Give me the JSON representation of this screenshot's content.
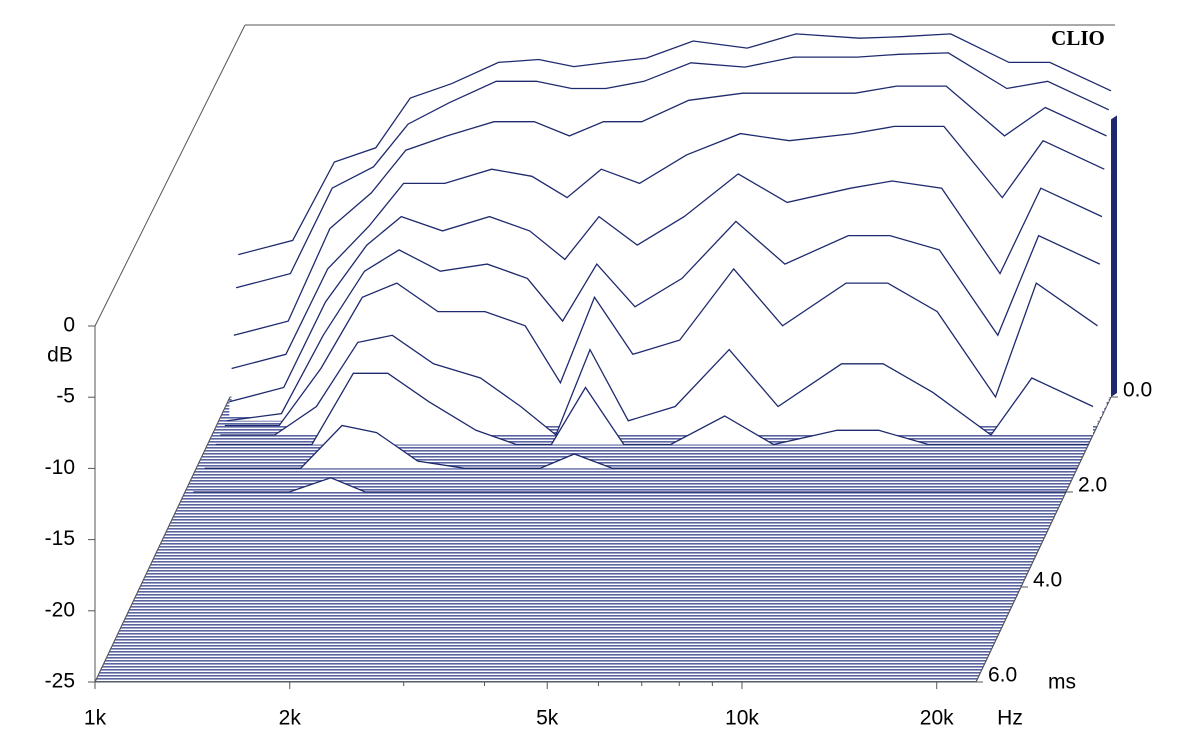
{
  "chart_data": {
    "type": "waterfall",
    "title": "CLIO",
    "y_label": "dB",
    "x_unit": "Hz",
    "time_unit": "ms",
    "xlim": [
      1000,
      23000
    ],
    "xticks": [
      {
        "value": 1000,
        "label": "1k"
      },
      {
        "value": 2000,
        "label": "2k"
      },
      {
        "value": 5000,
        "label": "5k"
      },
      {
        "value": 10000,
        "label": "10k"
      },
      {
        "value": 20000,
        "label": "20k"
      }
    ],
    "xminor_ticks": [
      3000,
      4000,
      6000,
      7000,
      8000,
      9000
    ],
    "ylim": [
      -25,
      0
    ],
    "yticks": [
      0,
      -5,
      -10,
      -15,
      -20,
      -25
    ],
    "tlim": [
      0,
      6
    ],
    "tticks": [
      {
        "value": 0,
        "label": "0.0"
      },
      {
        "value": 2,
        "label": "2.0"
      },
      {
        "value": 4,
        "label": "4.0"
      },
      {
        "value": 6,
        "label": "6.0"
      }
    ],
    "log_x": true,
    "color": "#1f2a6e",
    "floor_color": "#5a64a0",
    "frequencies": [
      1030,
      1250,
      1450,
      1680,
      1900,
      2200,
      2600,
      3000,
      3400,
      3840,
      4400,
      5200,
      6300,
      7500,
      9400,
      10900,
      13000,
      16000,
      18500,
      23000
    ],
    "slices": [
      {
        "time": 0,
        "values": [
          -15,
          -14,
          -8.5,
          -7.5,
          -4,
          -3,
          -1.5,
          -1.3,
          -1.8,
          -1.5,
          -1.2,
          0,
          -0.5,
          0.5,
          0.2,
          0.3,
          0.5,
          -1.5,
          -1.5,
          -3.5
        ]
      },
      {
        "time": 0.1,
        "values": [
          -17,
          -16,
          -10,
          -8.5,
          -5.5,
          -4,
          -2.5,
          -2.5,
          -3,
          -3,
          -2.5,
          -1.2,
          -1.5,
          -0.8,
          -0.8,
          -0.6,
          -0.5,
          -3,
          -2.5,
          -4.5
        ]
      },
      {
        "time": 0.2,
        "values": [
          -20,
          -19,
          -12.5,
          -10,
          -7,
          -6,
          -5,
          -5,
          -6,
          -5,
          -5,
          -3.5,
          -3,
          -3,
          -3,
          -2.5,
          -2.5,
          -6,
          -4,
          -6
        ]
      },
      {
        "time": 0.3,
        "values": [
          -22,
          -21,
          -15,
          -12,
          -9,
          -9,
          -8,
          -8.5,
          -10,
          -8,
          -9,
          -7,
          -5.5,
          -6,
          -5.5,
          -5,
          -5,
          -10,
          -6,
          -8
        ]
      },
      {
        "time": 0.4,
        "values": [
          -24,
          -23,
          -17,
          -13,
          -11,
          -12,
          -11,
          -12,
          -14,
          -11,
          -13,
          -11,
          -8,
          -10,
          -9,
          -8.5,
          -9,
          -15,
          -9,
          -11
        ]
      },
      {
        "time": 0.5,
        "values": [
          -25,
          -24.5,
          -19,
          -14.5,
          -13,
          -14.5,
          -14,
          -15,
          -18,
          -14,
          -17,
          -15,
          -11,
          -14,
          -12,
          -12,
          -13,
          -19,
          -12,
          -14
        ]
      },
      {
        "time": 0.6,
        "values": [
          -25,
          -25,
          -21,
          -16,
          -15,
          -17,
          -17,
          -18,
          -22,
          -16,
          -20,
          -19,
          -14,
          -18,
          -15,
          -15,
          -17,
          -23,
          -15,
          -18
        ]
      },
      {
        "time": 0.8,
        "values": [
          -25,
          -25,
          -23,
          -18.5,
          -18,
          -20,
          -21,
          -23,
          -25,
          -19,
          -24,
          -23,
          -19,
          -23,
          -20,
          -20,
          -22,
          -25,
          -21,
          -23
        ]
      },
      {
        "time": 1,
        "values": [
          -25,
          -25,
          -25,
          -20,
          -20,
          -22,
          -24,
          -25,
          -25,
          -21,
          -25,
          -25,
          -23,
          -25,
          -24,
          -24,
          -25,
          -25,
          -25,
          -25
        ]
      },
      {
        "time": 1.5,
        "values": [
          -25,
          -25,
          -25,
          -22,
          -22.5,
          -24.5,
          -25,
          -25,
          -25,
          -24,
          -25,
          -25,
          -25,
          -25,
          -25,
          -25,
          -25,
          -25,
          -25,
          -25
        ]
      },
      {
        "time": 2,
        "values": [
          -25,
          -25,
          -25,
          -24,
          -25,
          -25,
          -25,
          -25,
          -25,
          -25,
          -25,
          -25,
          -25,
          -25,
          -25,
          -25,
          -25,
          -25,
          -25,
          -25
        ]
      }
    ]
  }
}
